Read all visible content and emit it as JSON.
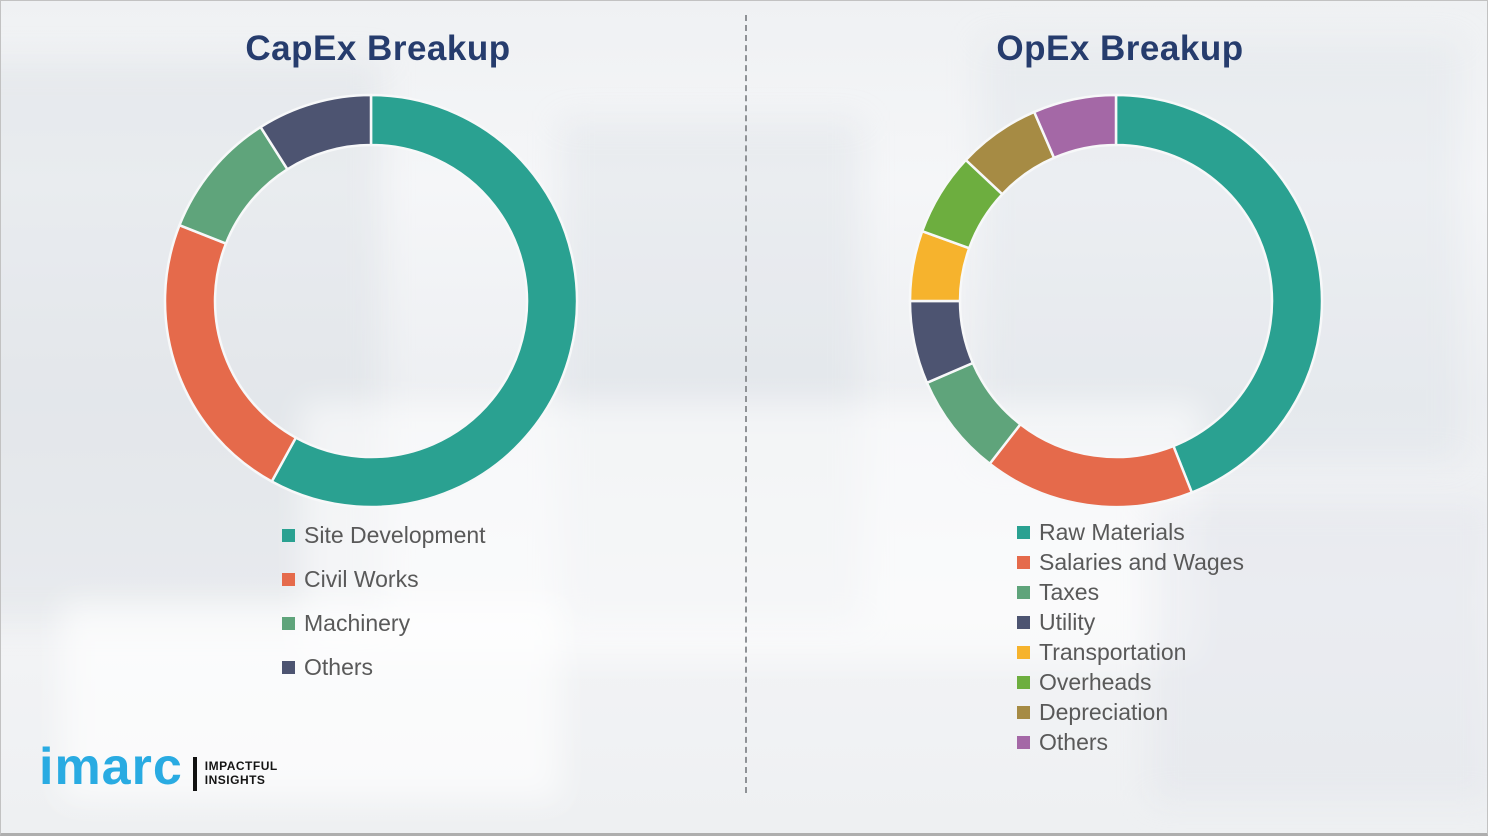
{
  "page": {
    "background_color": "#f0f1f3",
    "divider_style": "vertical-dashed",
    "title_color": "#263c6d",
    "legend_text_color": "#595959"
  },
  "branding": {
    "logo_text": "imarc",
    "tagline_line1": "IMPACTFUL",
    "tagline_line2": "INSIGHTS",
    "logo_color": "#29abe2"
  },
  "chart_data": [
    {
      "type": "pie",
      "subtype": "donut",
      "title": "CapEx Breakup",
      "start_angle_deg": 0,
      "direction": "clockwise",
      "legend_position": "below-left",
      "segments": [
        {
          "label": "Site Development",
          "value": 58,
          "color": "#2aa191"
        },
        {
          "label": "Civil Works",
          "value": 23,
          "color": "#e56a4b"
        },
        {
          "label": "Machinery",
          "value": 10,
          "color": "#5fa47b"
        },
        {
          "label": "Others",
          "value": 9,
          "color": "#4d5471"
        }
      ]
    },
    {
      "type": "pie",
      "subtype": "donut",
      "title": "OpEx Breakup",
      "start_angle_deg": 0,
      "direction": "clockwise",
      "legend_position": "below-left",
      "segments": [
        {
          "label": "Raw Materials",
          "value": 44,
          "color": "#2aa191"
        },
        {
          "label": "Salaries and Wages",
          "value": 16.5,
          "color": "#e56a4b"
        },
        {
          "label": "Taxes",
          "value": 8,
          "color": "#5fa47b"
        },
        {
          "label": "Utility",
          "value": 6.5,
          "color": "#4d5471"
        },
        {
          "label": "Transportation",
          "value": 5.5,
          "color": "#f6b32d"
        },
        {
          "label": "Overheads",
          "value": 6.5,
          "color": "#6dae3f"
        },
        {
          "label": "Depreciation",
          "value": 6.5,
          "color": "#a68b44"
        },
        {
          "label": "Others",
          "value": 6.5,
          "color": "#a468a6"
        }
      ]
    }
  ]
}
